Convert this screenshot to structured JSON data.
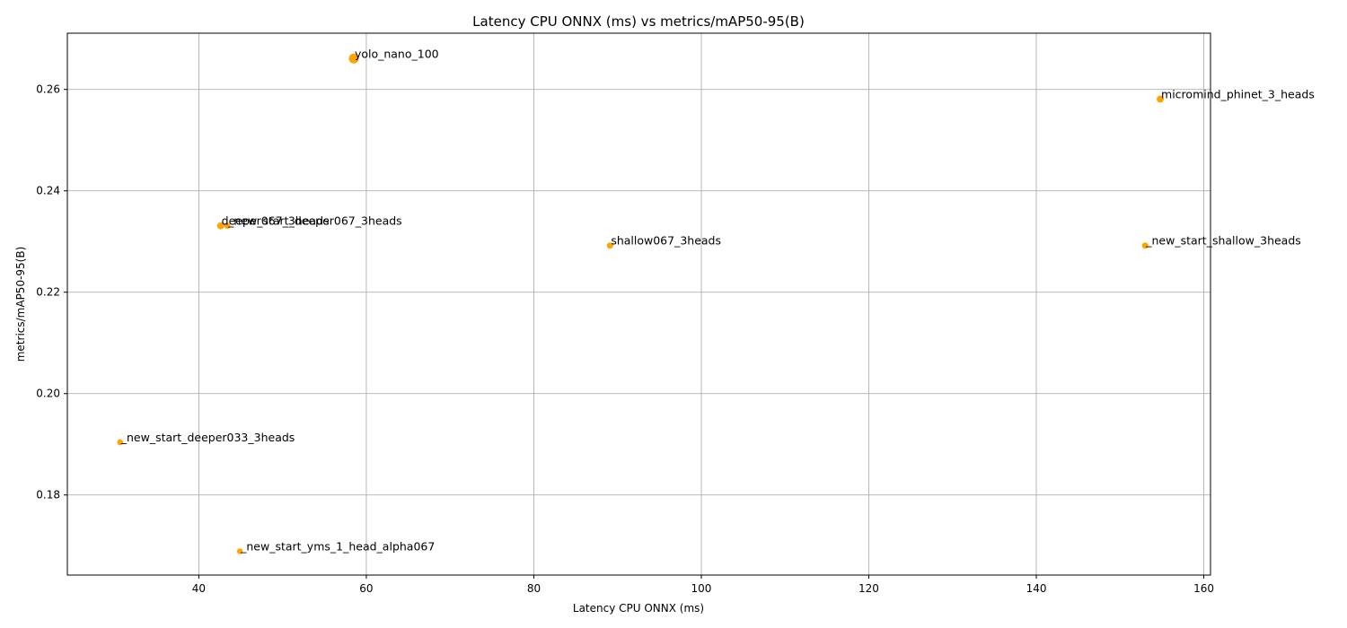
{
  "chart_data": {
    "type": "scatter",
    "title": "Latency CPU ONNX (ms) vs metrics/mAP50-95(B)",
    "xlabel": "Latency CPU ONNX (ms)",
    "ylabel": "metrics/mAP50-95(B)",
    "xlim": [
      24.3,
      160.8
    ],
    "ylim": [
      0.1642,
      0.2711
    ],
    "x_ticks": [
      40,
      60,
      80,
      100,
      120,
      140,
      160
    ],
    "y_ticks": [
      0.18,
      0.2,
      0.22,
      0.24,
      0.26
    ],
    "x_tick_labels": [
      "40",
      "60",
      "80",
      "100",
      "120",
      "140",
      "160"
    ],
    "y_tick_labels": [
      "0.18",
      "0.20",
      "0.22",
      "0.24",
      "0.26"
    ],
    "grid": true,
    "marker_color": "#FFA500",
    "points": [
      {
        "label": "yolo_nano_100",
        "x": 58.5,
        "y": 0.2661,
        "size": 3.0
      },
      {
        "label": "micromind_phinet_3_heads",
        "x": 154.8,
        "y": 0.2581,
        "size": 1.5
      },
      {
        "label": "deeper067_3heads",
        "x": 42.6,
        "y": 0.2331,
        "size": 1.5
      },
      {
        "label": "_new_start_deeper067_3heads",
        "x": 43.4,
        "y": 0.2331,
        "size": 1.2
      },
      {
        "label": "shallow067_3heads",
        "x": 89.1,
        "y": 0.2292,
        "size": 1.2
      },
      {
        "label": "_new_start_shallow_3heads",
        "x": 153.0,
        "y": 0.2292,
        "size": 1.2
      },
      {
        "label": "_new_start_deeper033_3heads",
        "x": 30.6,
        "y": 0.1904,
        "size": 1.1
      },
      {
        "label": "_new_start_yms_1_head_alpha067",
        "x": 44.9,
        "y": 0.1689,
        "size": 1.0
      }
    ]
  }
}
